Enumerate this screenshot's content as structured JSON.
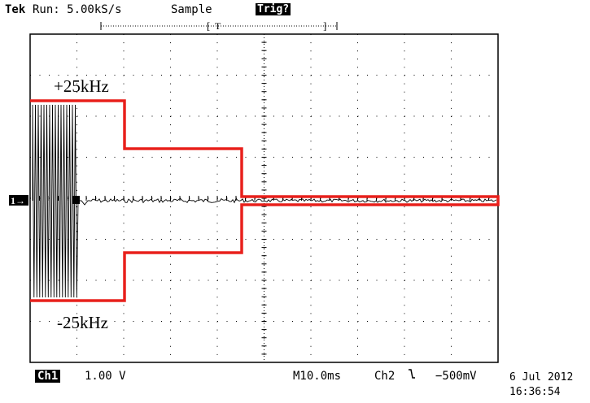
{
  "header": {
    "brand": "Tek",
    "run_status": "Run: 5.00kS/s",
    "acquire_mode": "Sample",
    "trigger_status": "Trig?",
    "trigger_pos_marker": "T"
  },
  "screen": {
    "ground_marker": "1→",
    "upper_label": "+25kHz",
    "lower_label": "-25kHz"
  },
  "footer": {
    "channel": "Ch1",
    "volts_div": "1.00 V",
    "timebase": "M10.0ms",
    "trigger_source": "Ch2",
    "trigger_slope_icon": "falling-edge",
    "trigger_level": "−500mV",
    "date": "6 Jul 2012",
    "time": "16:36:54"
  },
  "colors": {
    "overlay": "#e8201c",
    "trace": "#000000",
    "grid": "#000000"
  }
}
